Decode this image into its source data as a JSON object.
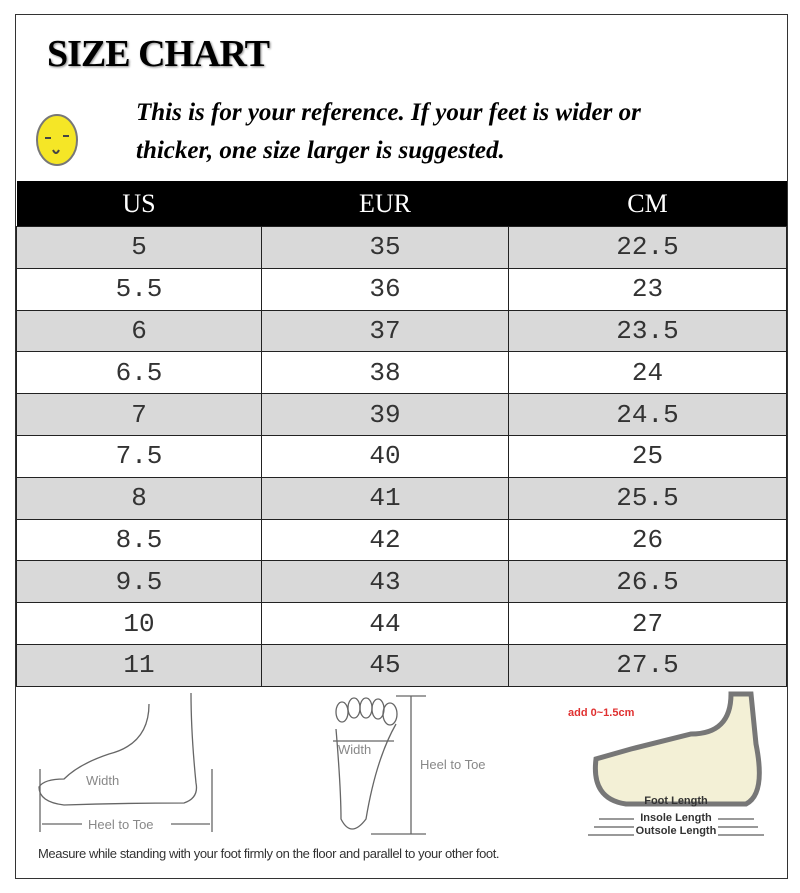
{
  "title": "SIZE CHART",
  "note": [
    "This is for your reference. If your feet is wider or",
    "thicker, one size larger is suggested."
  ],
  "icon": "smiley-face-icon",
  "table": {
    "headers": [
      "US",
      "EUR",
      "CM"
    ],
    "rows": [
      [
        "5",
        "35",
        "22.5"
      ],
      [
        "5.5",
        "36",
        "23"
      ],
      [
        "6",
        "37",
        "23.5"
      ],
      [
        "6.5",
        "38",
        "24"
      ],
      [
        "7",
        "39",
        "24.5"
      ],
      [
        "7.5",
        "40",
        "25"
      ],
      [
        "8",
        "41",
        "25.5"
      ],
      [
        "8.5",
        "42",
        "26"
      ],
      [
        "9.5",
        "43",
        "26.5"
      ],
      [
        "10",
        "44",
        "27"
      ],
      [
        "11",
        "45",
        "27.5"
      ]
    ]
  },
  "diagrams": {
    "side": {
      "width": "Width",
      "length": "Heel to Toe"
    },
    "top": {
      "width": "Width",
      "length": "Heel to Toe"
    },
    "shoe": {
      "add": "add 0~1.5cm",
      "foot": "Foot Length",
      "insole": "Insole Length",
      "outsole": "Outsole Length"
    }
  },
  "caption": "Measure while standing with your foot firmly on the floor and parallel to your other foot.",
  "colors": {
    "header_bg": "#000000",
    "row_alt": "#d9d9d9",
    "smiley": "#f5e626",
    "add_text": "#e03030"
  }
}
